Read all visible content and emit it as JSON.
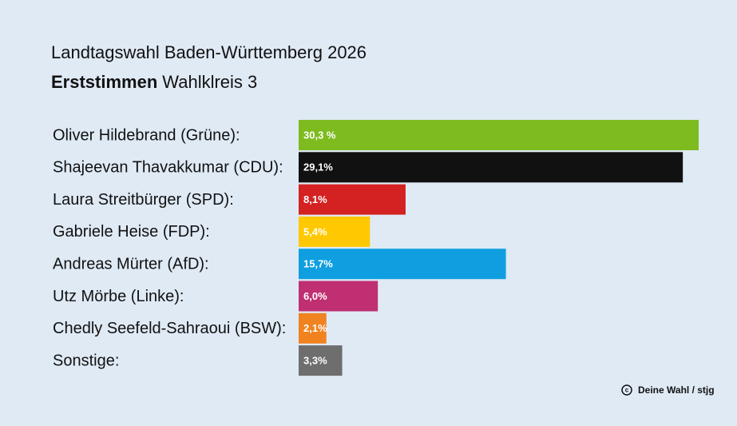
{
  "chart_data": {
    "type": "bar",
    "orientation": "horizontal",
    "title": "Landtagswahl Baden-Württemberg 2026",
    "subtitle_bold": "Erststimmen",
    "subtitle": "Wahlklreis 3",
    "categories": [
      "Oliver Hildebrand (Grüne):",
      "Shajeevan Thavakkumar (CDU):",
      "Laura Streitbürger (SPD):",
      "Gabriele Heise (FDP):",
      "Andreas Mürter (AfD):",
      "Utz Mörbe (Linke):",
      "Chedly Seefeld-Sahraoui (BSW):",
      "Sonstige:"
    ],
    "values": [
      30.3,
      29.1,
      8.1,
      5.4,
      15.7,
      6.0,
      2.1,
      3.3
    ],
    "value_labels": [
      "30,3 %",
      "29,1%",
      "8,1%",
      "5,4%",
      "15,7%",
      "6,0%",
      "2,1%",
      "3,3%"
    ],
    "colors": [
      "#7dbb1f",
      "#111111",
      "#d42121",
      "#ffc800",
      "#0f9fe0",
      "#bf2f72",
      "#f08220",
      "#6e6e6e"
    ],
    "source": "Deine Wahl / stjg"
  }
}
